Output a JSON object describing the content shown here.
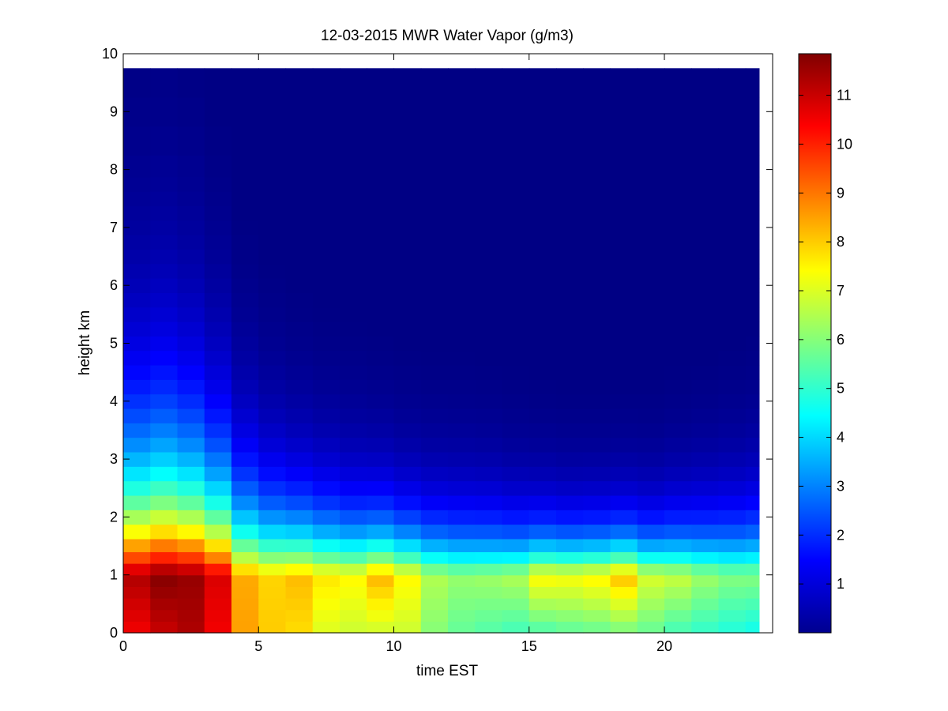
{
  "chart_data": {
    "type": "heatmap",
    "title": "12-03-2015 MWR Water Vapor (g/m3)",
    "xlabel": "time EST",
    "ylabel": "height km",
    "xlim": [
      0,
      24
    ],
    "ylim": [
      0,
      10
    ],
    "x_ticks": [
      "0",
      "5",
      "10",
      "15",
      "20"
    ],
    "x_tick_values": [
      0,
      5,
      10,
      15,
      20
    ],
    "y_ticks": [
      "0",
      "1",
      "2",
      "3",
      "4",
      "5",
      "6",
      "7",
      "8",
      "9",
      "10"
    ],
    "y_tick_values": [
      0,
      1,
      2,
      3,
      4,
      5,
      6,
      7,
      8,
      9,
      10
    ],
    "colorbar": {
      "colormap": "jet",
      "range": [
        0,
        11.85
      ],
      "ticks": [
        "1",
        "2",
        "3",
        "4",
        "5",
        "6",
        "7",
        "8",
        "9",
        "10",
        "11"
      ],
      "tick_values": [
        1,
        2,
        3,
        4,
        5,
        6,
        7,
        8,
        9,
        10,
        11
      ]
    },
    "x": [
      0,
      1,
      2,
      3,
      4,
      5,
      6,
      7,
      8,
      9,
      10,
      11,
      12,
      13,
      14,
      15,
      16,
      17,
      18,
      19,
      20,
      21,
      22,
      23
    ],
    "y_heights_km": [
      0.1,
      0.3,
      0.5,
      0.7,
      0.9,
      1.1,
      1.3,
      1.5,
      1.75,
      2.0,
      2.25,
      2.5,
      2.75,
      3.0,
      3.25,
      3.5,
      3.75,
      4.0,
      4.25,
      4.5,
      4.75,
      5.0,
      5.25,
      5.5,
      5.75,
      6.0,
      6.25,
      6.5,
      6.75,
      7.0,
      7.25,
      7.5,
      7.75,
      8.0,
      8.5,
      9.0,
      9.5
    ],
    "z_surface_g_m3": [
      10.5,
      11.0,
      11.3,
      10.5,
      8.5,
      8.0,
      7.8,
      7.0,
      6.8,
      6.8,
      6.8,
      6.0,
      5.6,
      5.4,
      5.2,
      5.3,
      5.5,
      5.6,
      5.8,
      5.6,
      5.2,
      5.0,
      4.8,
      4.6
    ],
    "z_peak_g_m3": [
      11.3,
      11.8,
      11.6,
      10.8,
      8.4,
      7.9,
      8.2,
      7.7,
      7.5,
      8.3,
      7.5,
      6.5,
      6.2,
      6.3,
      6.5,
      7.5,
      7.4,
      7.6,
      8.2,
      7.0,
      6.8,
      6.3,
      6.0,
      6.0
    ],
    "scale_height_km": [
      1.75,
      1.8,
      1.7,
      1.5,
      1.25,
      1.1,
      1.0,
      0.95,
      0.9,
      0.85,
      0.82,
      0.82,
      0.82,
      0.8,
      0.75,
      0.7,
      0.68,
      0.68,
      0.68,
      0.7,
      0.75,
      0.8,
      0.85,
      0.9
    ],
    "grid": false
  }
}
